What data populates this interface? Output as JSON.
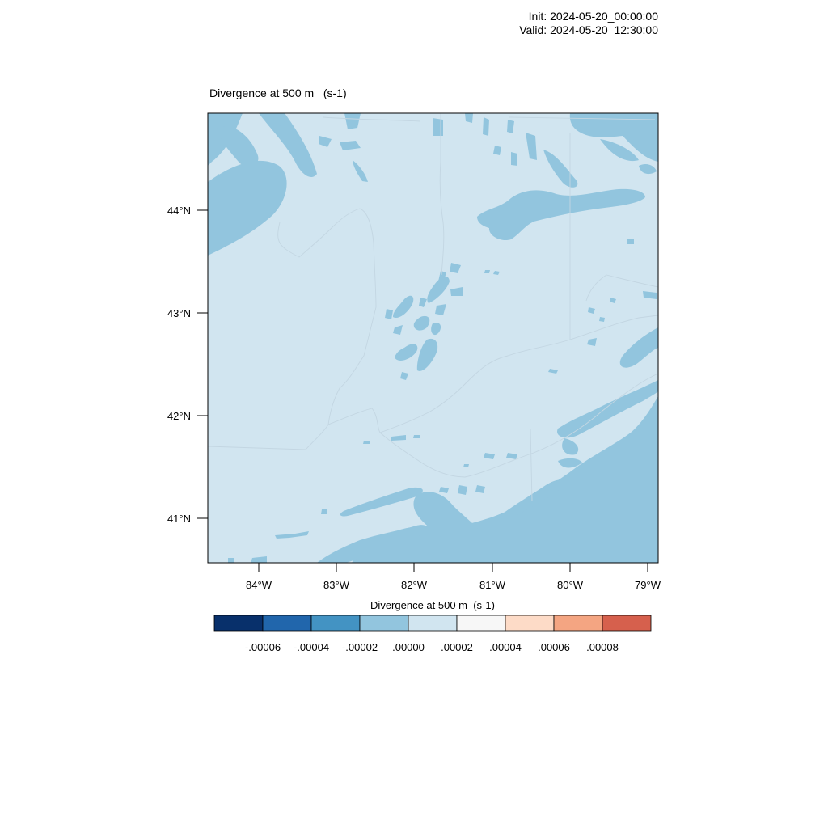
{
  "header": {
    "init": "Init: 2024-05-20_00:00:00",
    "valid": "Valid: 2024-05-20_12:30:00"
  },
  "plot": {
    "title": "Divergence at 500 m   (s-1)"
  },
  "axes": {
    "lon_ticks": [
      "84°W",
      "83°W",
      "82°W",
      "81°W",
      "80°W",
      "79°W"
    ],
    "lat_ticks": [
      "44°N",
      "43°N",
      "42°N",
      "41°N"
    ]
  },
  "colorbar": {
    "title": "Divergence at 500 m  (s-1)",
    "colors": [
      "#08306b",
      "#2166ac",
      "#4393c3",
      "#92c5de",
      "#d1e5f0",
      "#f7f7f7",
      "#fddbc7",
      "#f4a582",
      "#d6604d"
    ],
    "labels": [
      "-.00006",
      "-.00004",
      "-.00002",
      ".00000",
      ".00002",
      ".00004",
      ".00006",
      ".00008"
    ]
  },
  "map_colors": {
    "background_field": "#d1e5f0",
    "negative_patches": "#92c5de",
    "boundary_lines": "#c3d6e2"
  }
}
